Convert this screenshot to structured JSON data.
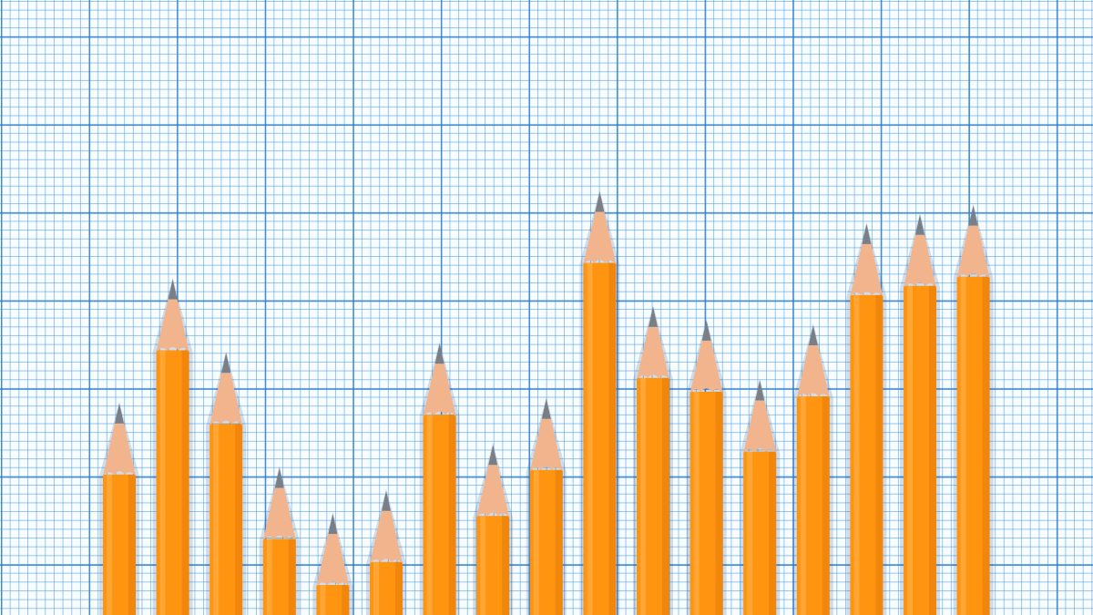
{
  "scene": {
    "description_color_paper": "#f7fcff",
    "grid_line_color": "#2878cd",
    "pencil_body_color": "#ff9410",
    "pencil_wood_color": "#f2b48c",
    "pencil_lead_color": "#7a7f85"
  },
  "chart_data": {
    "type": "bar",
    "categories": [
      "",
      "",
      "",
      "",
      "",
      "",
      "",
      "",
      "",
      "",
      "",
      "",
      "",
      "",
      "",
      "",
      ""
    ],
    "values": [
      44,
      71,
      55,
      30,
      20,
      25,
      57,
      35,
      45,
      90,
      65,
      62,
      49,
      61,
      83,
      85,
      87
    ],
    "ylim": [
      0,
      100
    ]
  }
}
